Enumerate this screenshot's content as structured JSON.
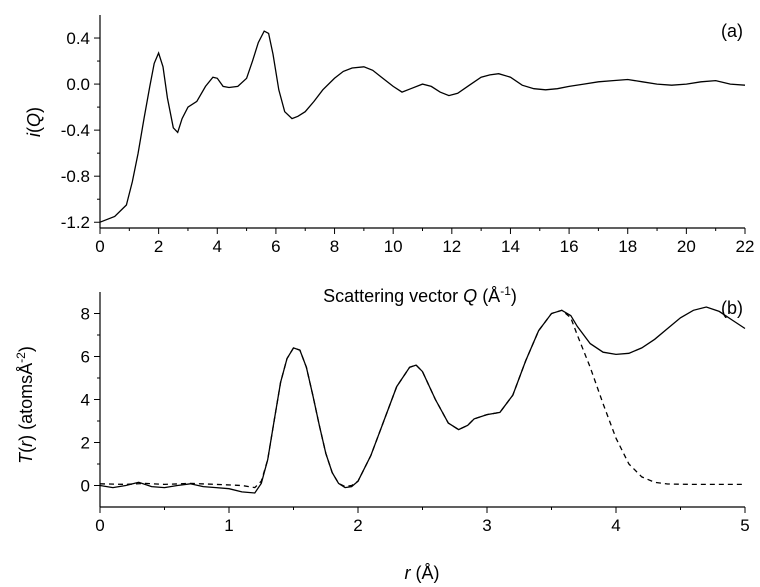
{
  "chart_data": [
    {
      "type": "line",
      "panel_label": "(a)",
      "xlabel_parts": [
        "Scattering vector ",
        "Q",
        " (Å",
        "-1",
        ")"
      ],
      "ylabel_parts": [
        "i",
        "(",
        "Q",
        ")"
      ],
      "xlim": [
        0,
        22
      ],
      "ylim": [
        -1.25,
        0.6
      ],
      "x_ticks": [
        0,
        2,
        4,
        6,
        8,
        10,
        12,
        14,
        16,
        18,
        20,
        22
      ],
      "x_tick_labels": [
        "0",
        "2",
        "4",
        "6",
        "8",
        "10",
        "12",
        "14",
        "16",
        "18",
        "20",
        "22"
      ],
      "y_ticks": [
        -1.2,
        -0.8,
        -0.4,
        0.0,
        0.4
      ],
      "y_tick_labels": [
        "-1.2",
        "-0.8",
        "-0.4",
        "0.0",
        "0.4"
      ],
      "series": [
        {
          "style": "solid",
          "x": [
            0,
            0.5,
            0.9,
            1.1,
            1.3,
            1.5,
            1.7,
            1.85,
            2.0,
            2.15,
            2.3,
            2.5,
            2.65,
            2.8,
            3.0,
            3.3,
            3.6,
            3.85,
            4.0,
            4.2,
            4.4,
            4.7,
            5.0,
            5.2,
            5.4,
            5.6,
            5.75,
            5.9,
            6.1,
            6.3,
            6.55,
            6.75,
            7.0,
            7.3,
            7.6,
            8.0,
            8.3,
            8.6,
            9.0,
            9.3,
            9.6,
            10.0,
            10.3,
            10.6,
            11.0,
            11.3,
            11.6,
            11.9,
            12.2,
            12.6,
            13.0,
            13.3,
            13.6,
            14.0,
            14.4,
            14.8,
            15.2,
            15.6,
            16.0,
            16.5,
            17.0,
            17.5,
            18.0,
            18.5,
            19.0,
            19.5,
            20.0,
            20.5,
            21.0,
            21.5,
            22.0
          ],
          "y": [
            -1.2,
            -1.15,
            -1.05,
            -0.85,
            -0.6,
            -0.3,
            -0.02,
            0.18,
            0.27,
            0.15,
            -0.12,
            -0.38,
            -0.42,
            -0.3,
            -0.2,
            -0.15,
            -0.02,
            0.06,
            0.05,
            -0.02,
            -0.03,
            -0.02,
            0.05,
            0.2,
            0.36,
            0.46,
            0.44,
            0.26,
            -0.05,
            -0.24,
            -0.3,
            -0.28,
            -0.24,
            -0.15,
            -0.05,
            0.05,
            0.11,
            0.14,
            0.15,
            0.12,
            0.06,
            -0.02,
            -0.07,
            -0.04,
            0.0,
            -0.02,
            -0.07,
            -0.1,
            -0.08,
            -0.01,
            0.06,
            0.08,
            0.09,
            0.06,
            -0.01,
            -0.04,
            -0.05,
            -0.04,
            -0.02,
            0.0,
            0.02,
            0.03,
            0.04,
            0.02,
            0.0,
            -0.01,
            0.0,
            0.02,
            0.03,
            0.0,
            -0.01
          ]
        }
      ]
    },
    {
      "type": "line",
      "panel_label": "(b)",
      "xlabel_parts": [
        "r",
        " (Å)"
      ],
      "ylabel_parts": [
        "T",
        "(",
        "r",
        ") (atomsÅ",
        "-2",
        ")"
      ],
      "xlim": [
        0,
        5
      ],
      "ylim": [
        -1.0,
        9.0
      ],
      "x_ticks": [
        0,
        1,
        2,
        3,
        4,
        5
      ],
      "x_tick_labels": [
        "0",
        "1",
        "2",
        "3",
        "4",
        "5"
      ],
      "y_ticks": [
        0,
        2,
        4,
        6,
        8
      ],
      "y_tick_labels": [
        "0",
        "2",
        "4",
        "6",
        "8"
      ],
      "series": [
        {
          "style": "solid",
          "x": [
            0,
            0.1,
            0.2,
            0.3,
            0.4,
            0.5,
            0.6,
            0.7,
            0.8,
            0.9,
            1.0,
            1.1,
            1.2,
            1.25,
            1.3,
            1.35,
            1.4,
            1.45,
            1.5,
            1.55,
            1.6,
            1.65,
            1.7,
            1.75,
            1.8,
            1.85,
            1.9,
            1.95,
            2.0,
            2.1,
            2.2,
            2.3,
            2.4,
            2.45,
            2.5,
            2.6,
            2.7,
            2.78,
            2.85,
            2.9,
            3.0,
            3.1,
            3.2,
            3.3,
            3.4,
            3.5,
            3.58,
            3.65,
            3.7,
            3.8,
            3.9,
            4.0,
            4.1,
            4.2,
            4.3,
            4.4,
            4.5,
            4.6,
            4.7,
            4.8,
            4.9,
            5.0
          ],
          "y": [
            0.0,
            -0.1,
            0.0,
            0.15,
            -0.05,
            -0.1,
            0.0,
            0.08,
            -0.05,
            -0.1,
            -0.15,
            -0.3,
            -0.35,
            0.1,
            1.2,
            3.0,
            4.8,
            5.9,
            6.4,
            6.3,
            5.5,
            4.2,
            2.8,
            1.5,
            0.6,
            0.1,
            -0.1,
            -0.05,
            0.2,
            1.4,
            3.0,
            4.6,
            5.5,
            5.6,
            5.3,
            4.0,
            2.9,
            2.6,
            2.8,
            3.1,
            3.3,
            3.4,
            4.2,
            5.8,
            7.2,
            8.0,
            8.15,
            7.9,
            7.4,
            6.6,
            6.2,
            6.1,
            6.15,
            6.4,
            6.8,
            7.3,
            7.8,
            8.15,
            8.3,
            8.1,
            7.7,
            7.3
          ]
        },
        {
          "style": "dashed",
          "x": [
            0,
            0.2,
            0.35,
            0.5,
            0.7,
            0.9,
            1.1,
            1.2,
            1.25,
            1.3,
            1.35,
            1.4,
            1.45,
            1.5,
            1.55,
            1.6,
            1.65,
            1.7,
            1.75,
            1.8,
            1.85,
            1.9,
            1.95,
            2.0,
            2.1,
            2.2,
            2.3,
            2.4,
            2.45,
            2.5,
            2.6,
            2.7,
            2.78,
            2.85,
            2.9,
            3.0,
            3.1,
            3.2,
            3.3,
            3.4,
            3.5,
            3.58,
            3.65,
            3.7,
            3.8,
            3.9,
            4.0,
            4.1,
            4.2,
            4.3,
            4.4,
            4.6,
            4.8,
            5.0
          ],
          "y": [
            0.08,
            0.05,
            0.1,
            0.05,
            0.1,
            0.05,
            0.0,
            -0.1,
            0.2,
            1.2,
            3.0,
            4.8,
            5.9,
            6.4,
            6.3,
            5.5,
            4.2,
            2.8,
            1.5,
            0.6,
            0.1,
            -0.05,
            0.0,
            0.2,
            1.4,
            3.0,
            4.6,
            5.5,
            5.6,
            5.3,
            4.0,
            2.9,
            2.6,
            2.8,
            3.1,
            3.3,
            3.4,
            4.2,
            5.8,
            7.2,
            8.0,
            8.15,
            7.8,
            7.0,
            5.5,
            3.8,
            2.2,
            1.0,
            0.4,
            0.15,
            0.07,
            0.05,
            0.05,
            0.05
          ]
        }
      ]
    }
  ]
}
